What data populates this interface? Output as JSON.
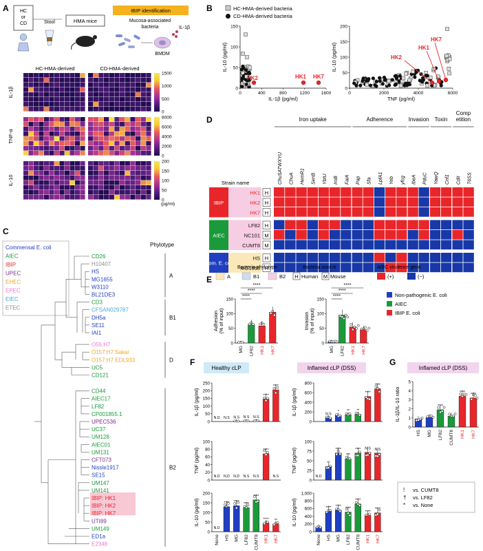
{
  "panel_letters": {
    "a": "A",
    "b": "B",
    "c": "C",
    "d": "D",
    "e": "E",
    "f": "F",
    "g": "G"
  },
  "colors": {
    "ibip": "#e8262a",
    "aiec": "#1a9a3a",
    "commensal": "#1f3fbf",
    "virulence_pos": "#e8262a",
    "virulence_neg": "#1838a8",
    "heatmap_low": "#1e0a4e",
    "heatmap_high": "#f6e84a",
    "orange": "#f5b21e"
  },
  "panelA": {
    "box_hc": "HC\nor\nCD",
    "stool": "Stool",
    "hma_mice": "HMA mice",
    "ibip_banner": "IBIP identification",
    "mucosa": "Mucosa-associated\nbacteria",
    "il1b": "IL-1β",
    "bmdm": "BMDM",
    "col_hc": "HC-HMA-derived",
    "col_cd": "CD-HMA-derived",
    "rows": [
      "IL-1β",
      "TNF-α",
      "IL-10"
    ],
    "scales": [
      [
        "1500",
        "1000",
        "500",
        "0"
      ],
      [
        "8000",
        "6000",
        "4000",
        "2000",
        "0"
      ],
      [
        "200",
        "150",
        "100",
        "50",
        "0"
      ]
    ],
    "unit": "(pg/ml)"
  },
  "panelB": {
    "legend": [
      "HC-HMA-derived bacteria",
      "CD-HMA-derived bacteria"
    ],
    "left": {
      "ylabel": "IL-10 (pg/ml)",
      "xlabel": "IL-1β (pg/ml)",
      "yticks": [
        "0",
        "50",
        "100",
        "150"
      ],
      "xticks": [
        "0",
        "400",
        "800",
        "1200",
        "1600"
      ],
      "labels": [
        "HK2",
        "HK1",
        "HK7"
      ]
    },
    "right": {
      "ylabel": "IL-10 (pg/ml)",
      "xlabel": "TNF (pg/ml)",
      "yticks": [
        "0",
        "50",
        "100",
        "150",
        "200"
      ],
      "xticks": [
        "0",
        "2000",
        "4000",
        "6000"
      ],
      "labels": [
        "HK2",
        "HK1",
        "HK7"
      ]
    }
  },
  "panelC": {
    "legend": [
      {
        "label": "Commensal E. coli",
        "color": "#1f3fbf"
      },
      {
        "label": "AIEC",
        "color": "#1a9a3a"
      },
      {
        "label": "IBIP",
        "color": "#e8262a"
      },
      {
        "label": "UPEC",
        "color": "#7a2d8c"
      },
      {
        "label": "EHEC",
        "color": "#f5a623"
      },
      {
        "label": "EPEC",
        "color": "#e87ad0"
      },
      {
        "label": "EIEC",
        "color": "#4aa8d8"
      },
      {
        "label": "ETEC",
        "color": "#8c8c8c"
      }
    ],
    "phylotype_title": "Phylotype",
    "groups": [
      "A",
      "B1",
      "D",
      "B2"
    ],
    "strains": [
      {
        "name": "CD26",
        "color": "#1a9a3a"
      },
      {
        "name": "H10407",
        "color": "#8c8c8c"
      },
      {
        "name": "HS",
        "color": "#1f3fbf"
      },
      {
        "name": "MG1655",
        "color": "#1f3fbf"
      },
      {
        "name": "W3110",
        "color": "#1f3fbf"
      },
      {
        "name": "BL21DE3",
        "color": "#1f3fbf"
      },
      {
        "name": "CD3",
        "color": "#1a9a3a"
      },
      {
        "name": "CFSAN029787",
        "color": "#4aa8d8"
      },
      {
        "name": "DH5a",
        "color": "#1f3fbf"
      },
      {
        "name": "SE11",
        "color": "#1f3fbf"
      },
      {
        "name": "IAI1",
        "color": "#1f3fbf"
      },
      {
        "name": "O55:H7",
        "color": "#e87ad0"
      },
      {
        "name": "O157:H7 Sakai",
        "color": "#f5a623"
      },
      {
        "name": "O157:H7 EDL933",
        "color": "#f5a623"
      },
      {
        "name": "UC5",
        "color": "#1a9a3a"
      },
      {
        "name": "CD121",
        "color": "#1a9a3a"
      },
      {
        "name": "CD44",
        "color": "#1a9a3a"
      },
      {
        "name": "AIEC17",
        "color": "#1a9a3a"
      },
      {
        "name": "LF82",
        "color": "#1a9a3a"
      },
      {
        "name": "CP001855.1",
        "color": "#1a9a3a"
      },
      {
        "name": "UPEC536",
        "color": "#7a2d8c"
      },
      {
        "name": "UC37",
        "color": "#1a9a3a"
      },
      {
        "name": "UM128",
        "color": "#1a9a3a"
      },
      {
        "name": "AIEC01",
        "color": "#1a9a3a"
      },
      {
        "name": "UM131",
        "color": "#1a9a3a"
      },
      {
        "name": "CFT073",
        "color": "#7a2d8c"
      },
      {
        "name": "Nissle1917",
        "color": "#1f3fbf"
      },
      {
        "name": "SE15",
        "color": "#1f3fbf"
      },
      {
        "name": "UM147",
        "color": "#1a9a3a"
      },
      {
        "name": "UM141",
        "color": "#1a9a3a"
      },
      {
        "name": "IBIP: HK1",
        "color": "#e8262a"
      },
      {
        "name": "IBIP: HK2",
        "color": "#e8262a"
      },
      {
        "name": "IBIP: HK7",
        "color": "#e8262a"
      },
      {
        "name": "UTI89",
        "color": "#7a2d8c"
      },
      {
        "name": "UM149",
        "color": "#1a9a3a"
      },
      {
        "name": "ED1a",
        "color": "#1f3fbf"
      },
      {
        "name": "E2348",
        "color": "#e87ad0"
      }
    ]
  },
  "panelD": {
    "categories": [
      "Iron uptake",
      "Adherence",
      "Invasion",
      "Toxin",
      "Comp\netition"
    ],
    "genes": [
      "ChuSATWXYU",
      "ChuA",
      "HemR1",
      "SenB",
      "YbtU",
      "IroB",
      "FaiA",
      "Pap",
      "Sfa",
      "LpfA1",
      "Yeb",
      "yfcg",
      "IbeA",
      "PduC",
      "YawQ",
      "Cnf1",
      "CdiI",
      "T6SS"
    ],
    "strain_header": "Strain name",
    "groups": [
      {
        "label": "IBIP",
        "color": "#e8262a",
        "strains": [
          {
            "name": "HK1",
            "src": "H"
          },
          {
            "name": "HK2",
            "src": "H"
          },
          {
            "name": "HK7",
            "src": "H"
          }
        ]
      },
      {
        "label": "AIEC",
        "color": "#1a9a3a",
        "strains": [
          {
            "name": "LF82",
            "src": "H"
          },
          {
            "name": "NC101",
            "src": "M"
          },
          {
            "name": "CUMT8",
            "src": "M"
          }
        ]
      },
      {
        "label": "Com. E. coli",
        "color": "#1f3fbf",
        "strains": [
          {
            "name": "HS",
            "src": "H"
          },
          {
            "name": "MG1655",
            "src": "H"
          }
        ]
      }
    ],
    "matrix": [
      [
        1,
        1,
        1,
        1,
        1,
        1,
        1,
        1,
        1,
        0,
        1,
        1,
        1,
        0,
        1,
        1,
        1,
        1
      ],
      [
        1,
        1,
        1,
        1,
        1,
        1,
        1,
        1,
        1,
        0,
        1,
        1,
        1,
        0,
        1,
        1,
        1,
        1
      ],
      [
        1,
        1,
        1,
        1,
        1,
        1,
        1,
        1,
        1,
        0,
        1,
        1,
        1,
        0,
        1,
        1,
        1,
        1
      ],
      [
        0,
        1,
        1,
        0,
        1,
        1,
        0,
        0,
        0,
        1,
        1,
        1,
        1,
        1,
        0,
        0,
        0,
        0
      ],
      [
        1,
        0,
        1,
        0,
        1,
        0,
        0,
        0,
        0,
        1,
        1,
        1,
        0,
        1,
        0,
        0,
        1,
        0
      ],
      [
        0,
        0,
        0,
        0,
        0,
        0,
        0,
        0,
        0,
        0,
        0,
        0,
        0,
        0,
        0,
        0,
        0,
        0
      ],
      [
        0,
        0,
        0,
        0,
        0,
        0,
        0,
        0,
        0,
        1,
        0,
        1,
        0,
        0,
        0,
        0,
        0,
        0
      ],
      [
        0,
        0,
        0,
        0,
        0,
        0,
        0,
        0,
        0,
        0,
        1,
        1,
        0,
        0,
        0,
        0,
        0,
        0
      ]
    ],
    "legend_phylotype_title": "Bacteria phylotype",
    "legend_phylotypes": [
      {
        "label": "A",
        "color": "#fbe8b8"
      },
      {
        "label": "B1",
        "color": "#cfdcf2"
      },
      {
        "label": "B2",
        "color": "#f6cde2"
      }
    ],
    "legend_source_title": "Bacteria source",
    "legend_source": [
      {
        "k": "H",
        "label": "Human"
      },
      {
        "k": "M",
        "label": "Mouse"
      }
    ],
    "legend_virulence_title": "AIEC virulence gene",
    "legend_virulence": [
      {
        "label": "(+)",
        "color": "#e8262a"
      },
      {
        "label": "(−)",
        "color": "#1838a8"
      }
    ]
  },
  "panelE": {
    "adhesion": {
      "ylabel": "Adhesion\n(% of input)",
      "yticks": [
        "0",
        "50",
        "100",
        "150"
      ],
      "categories": [
        "MG",
        "LF82",
        "HK1",
        "HK7"
      ],
      "values": [
        2,
        62,
        58,
        105
      ],
      "colors": [
        "#1f3fbf",
        "#1a9a3a",
        "#e8262a",
        "#e8262a"
      ],
      "sig": [
        "****",
        "****",
        "****"
      ]
    },
    "invasion": {
      "ylabel": "Invasion\n(% of input)",
      "yticks": [
        "0",
        "50",
        "100",
        "150"
      ],
      "categories": [
        "MG",
        "LF82",
        "HK1",
        "HK7"
      ],
      "values": [
        5,
        95,
        55,
        45
      ],
      "colors": [
        "#1f3fbf",
        "#1a9a3a",
        "#e8262a",
        "#e8262a"
      ],
      "sig": [
        "****",
        "****",
        "****"
      ]
    },
    "legend": [
      {
        "label": "Non-pathogenic E. coli",
        "color": "#1f3fbf"
      },
      {
        "label": "AIEC",
        "color": "#1a9a3a"
      },
      {
        "label": "IBIP E. coli",
        "color": "#e8262a"
      }
    ]
  },
  "panelF": {
    "title_left": "Healthy cLP",
    "title_right": "Inflamed cLP (DSS)",
    "categories": [
      "None",
      "HS",
      "MG",
      "LF82",
      "CUMT8",
      "HK1",
      "HK7"
    ],
    "bar_colors": [
      "#1f3fbf",
      "#1f3fbf",
      "#1f3fbf",
      "#1a9a3a",
      "#1a9a3a",
      "#e8262a",
      "#e8262a"
    ],
    "rows": [
      {
        "ylabel": "IL-1β (pg/ml)",
        "yticks": [
          "0",
          "50",
          "100",
          "150",
          "200",
          "250"
        ],
        "max": 250,
        "left": [
          0,
          0,
          3,
          4,
          5,
          145,
          205
        ],
        "right": [
          0,
          80,
          130,
          140,
          150,
          520,
          680
        ],
        "right_max": 800,
        "right_yticks": [
          "0",
          "200",
          "400",
          "600",
          "800"
        ],
        "left_sig": [
          "N.D",
          "N.S",
          "N.S",
          "N.S",
          "N.S",
          "****",
          "****"
        ],
        "right_sig": [
          "",
          "N.S",
          "*",
          "**",
          "**",
          "****",
          "****"
        ]
      },
      {
        "ylabel": "TNF (pg/ml)",
        "yticks": [
          "0",
          "20",
          "40",
          "60",
          "80",
          "100"
        ],
        "max": 100,
        "left": [
          0,
          0,
          0,
          0,
          0,
          68,
          0
        ],
        "right": [
          0,
          35,
          70,
          55,
          70,
          72,
          70
        ],
        "right_max": 100,
        "right_yticks": [
          "0",
          "25",
          "50",
          "75",
          "100"
        ],
        "left_sig": [
          "N.D",
          "N.D",
          "N.D",
          "N.S",
          "N.S",
          "****",
          "N.S"
        ],
        "right_sig": [
          "N.D",
          "**",
          "****",
          "***",
          "****",
          "N.S",
          "N.S"
        ]
      },
      {
        "ylabel": "IL-10 (pg/ml)",
        "yticks": [
          "0",
          "50",
          "100",
          "150",
          "200"
        ],
        "max": 200,
        "left": [
          0,
          130,
          135,
          125,
          165,
          45,
          40
        ],
        "right": [
          120,
          530,
          560,
          510,
          720,
          420,
          490
        ],
        "right_max": 1000,
        "right_yticks": [
          "0",
          "200",
          "400",
          "600",
          "800",
          "1,000"
        ],
        "left_sig": [
          "N.D",
          "****",
          "****",
          "****",
          "****",
          "****",
          "**"
        ],
        "right_sig": [
          "",
          "****",
          "****",
          "****",
          "****",
          "****",
          "****"
        ]
      }
    ]
  },
  "panelG": {
    "title": "Inflamed cLP (DSS)",
    "ylabel": "IL-1β/IL-10 ratio",
    "yticks": [
      "0",
      "1",
      "2",
      "3",
      "4",
      "5"
    ],
    "categories": [
      "HS",
      "MG",
      "LF82",
      "CUMT8",
      "HK1",
      "HK7"
    ],
    "values": [
      0.9,
      1.05,
      1.9,
      1.2,
      3.4,
      3.2
    ],
    "colors": [
      "#1f3fbf",
      "#1f3fbf",
      "#1a9a3a",
      "#1a9a3a",
      "#e8262a",
      "#e8262a"
    ],
    "sig": [
      "",
      "",
      "****",
      "",
      "****",
      "****"
    ],
    "key": [
      {
        "sym": "!",
        "text": "vs. CUMT8"
      },
      {
        "sym": "†",
        "text": "vs. LF82"
      },
      {
        "sym": "*",
        "text": "vs. None"
      }
    ]
  }
}
